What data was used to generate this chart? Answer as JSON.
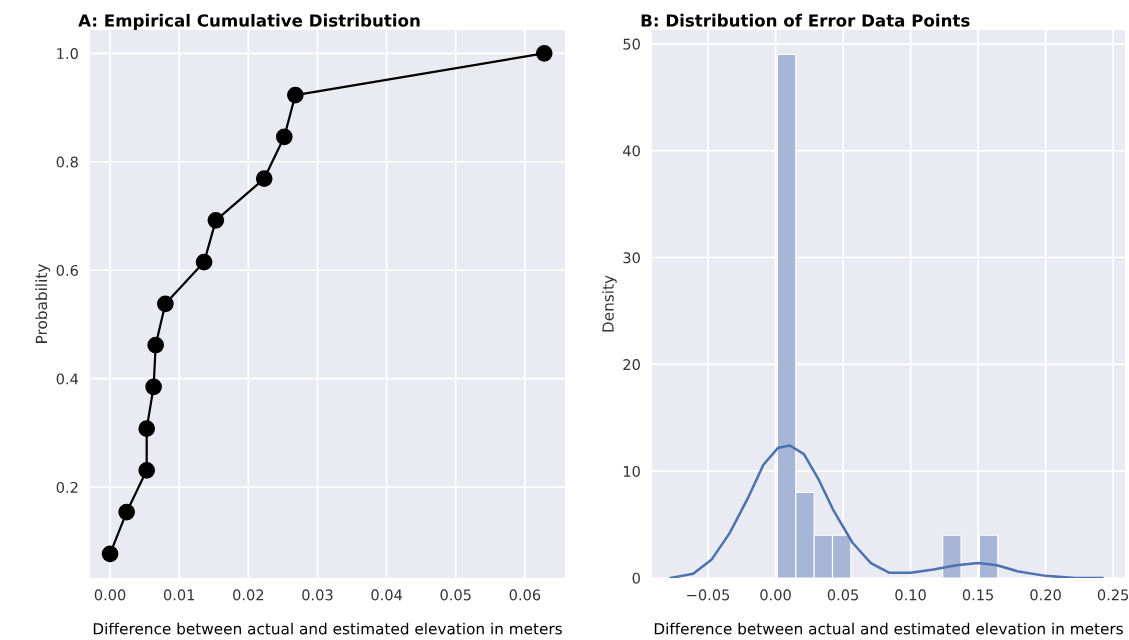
{
  "chart_data": [
    {
      "type": "line",
      "title": "A: Empirical Cumulative Distribution",
      "xlabel": "Difference between actual and estimated elevation in meters",
      "ylabel": "Probability",
      "x": [
        0.0,
        0.0024,
        0.0053,
        0.0053,
        0.0063,
        0.0066,
        0.008,
        0.0136,
        0.0153,
        0.0223,
        0.0252,
        0.0268,
        0.0628
      ],
      "values": [
        0.077,
        0.154,
        0.231,
        0.308,
        0.385,
        0.462,
        0.538,
        0.615,
        0.692,
        0.769,
        0.846,
        0.923,
        1.0
      ],
      "color": "#000000",
      "marker": "circle",
      "line_style": "solid",
      "xlim": [
        -0.0029,
        0.0658
      ],
      "xticks": [
        {
          "value": 0,
          "label": "0.00"
        },
        0.01,
        0.02,
        0.03,
        0.04,
        0.05,
        0.06
      ],
      "ylim": [
        0.0325,
        1.043
      ],
      "yticks": [
        0.2,
        0.4,
        0.6,
        0.8,
        {
          "value": 1,
          "label": "1.0"
        }
      ],
      "grid": true
    },
    {
      "type": "histogram",
      "title": "B: Distribution of Error Data Points",
      "xlabel": "Difference between actual and estimated elevation in meters",
      "ylabel": "Density",
      "series": [
        {
          "type": "histogram",
          "color": "#a7b6d7",
          "bins": [
            0.0014,
            0.015,
            0.0286,
            0.0422,
            0.0558,
            0.0694,
            0.083,
            0.0966,
            0.1102,
            0.1238,
            0.1374,
            0.151,
            0.1646
          ],
          "values": [
            49,
            8,
            4,
            4,
            0,
            0,
            0,
            0,
            0,
            4,
            0,
            4
          ]
        },
        {
          "type": "line",
          "color": "#4c72b0",
          "x": [
            -0.0777,
            -0.061,
            -0.0475,
            -0.034,
            -0.02,
            -0.009,
            0.002,
            0.0107,
            0.021,
            0.032,
            0.043,
            0.057,
            0.0706,
            0.084,
            0.1,
            0.117,
            0.134,
            0.15,
            0.164,
            0.18,
            0.2,
            0.222,
            0.242
          ],
          "values": [
            0,
            0.4,
            1.7,
            4.2,
            7.6,
            10.6,
            12.2,
            12.4,
            11.6,
            9.2,
            6.3,
            3.3,
            1.4,
            0.5,
            0.5,
            0.8,
            1.2,
            1.4,
            1.2,
            0.6,
            0.2,
            0,
            0
          ]
        }
      ],
      "xlim": [
        -0.0915,
        0.2588
      ],
      "xticks": [
        {
          "value": -0.05,
          "label": "−0.05"
        },
        {
          "value": 0,
          "label": "0.00"
        },
        {
          "value": 0.05,
          "label": "0.05"
        },
        {
          "value": 0.1,
          "label": "0.10"
        },
        {
          "value": 0.15,
          "label": "0.15"
        },
        {
          "value": 0.2,
          "label": "0.20"
        },
        {
          "value": 0.25,
          "label": "0.25"
        }
      ],
      "ylim": [
        0,
        51.3
      ],
      "yticks": [
        0,
        10,
        20,
        30,
        40,
        50
      ],
      "grid": true
    }
  ]
}
